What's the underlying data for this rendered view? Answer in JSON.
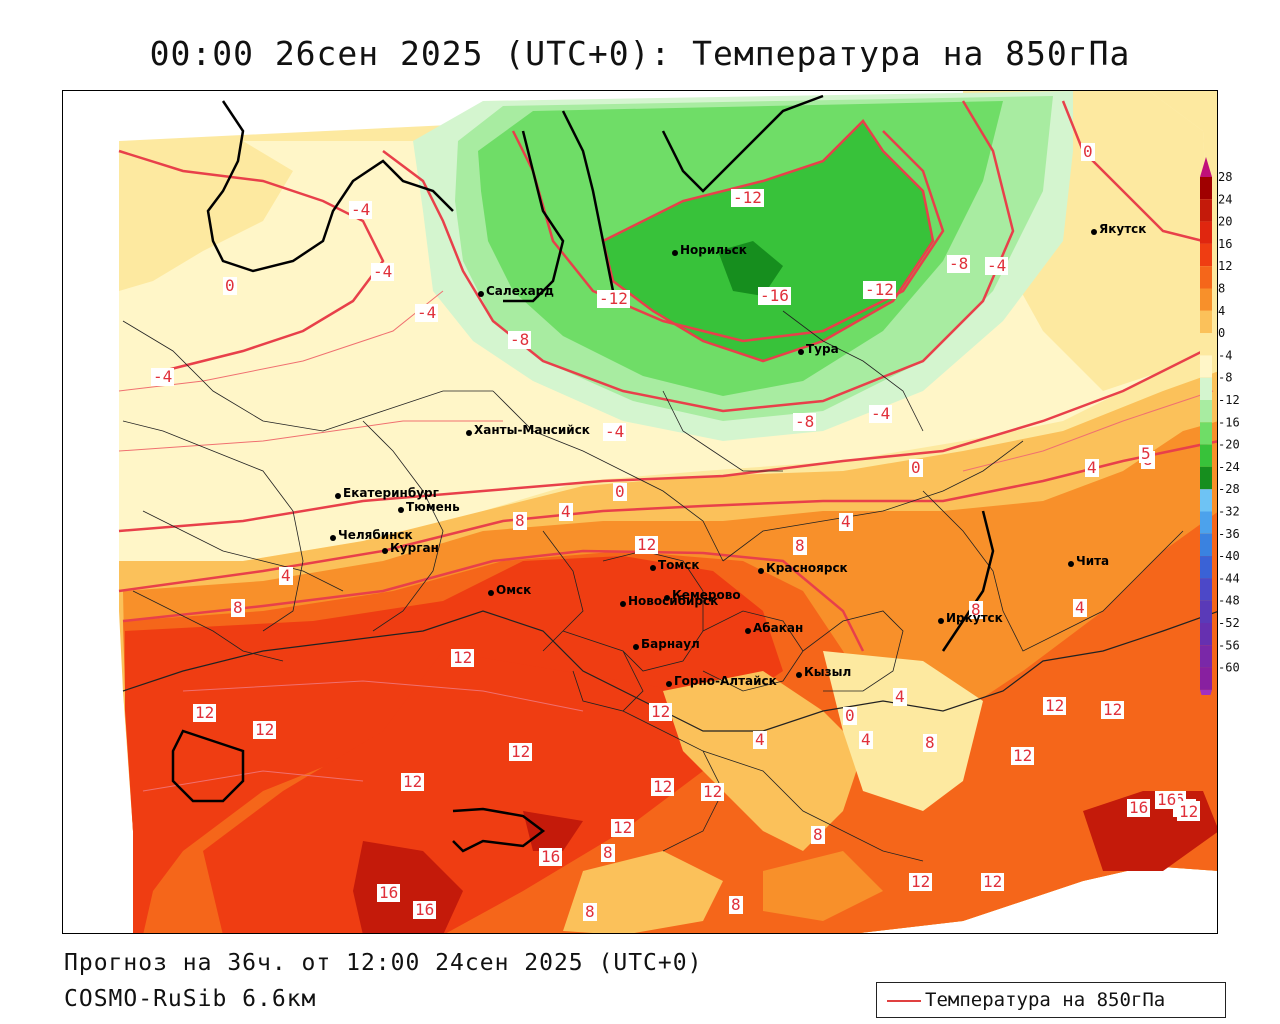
{
  "title": "00:00 26сен 2025 (UTC+0): Температура на 850гПа",
  "forecast_text": "Прогноз на 36ч. от 12:00 24сен 2025 (UTC+0)",
  "model_text": "COSMO-RuSib 6.6км",
  "legend_label": "Температура на 850гПа",
  "colorbar": {
    "ticks": [
      "28",
      "24",
      "20",
      "16",
      "12",
      "8",
      "4",
      "0",
      "-4",
      "-8",
      "-12",
      "-16",
      "-20",
      "-24",
      "-28",
      "-32",
      "-36",
      "-40",
      "-44",
      "-48",
      "-52",
      "-56",
      "-60"
    ],
    "colors": [
      "#a00000",
      "#c41a0a",
      "#e0260f",
      "#ef3d12",
      "#f5661a",
      "#f8902a",
      "#fbc15a",
      "#fde9a0",
      "#fff6c8",
      "#d4f5cf",
      "#a8eca1",
      "#6fdd67",
      "#38c23a",
      "#168e1e",
      "#6ec3f4",
      "#4ca2ec",
      "#3a82e0",
      "#3a62d6",
      "#4c48c8",
      "#5a3ab8",
      "#6630b0",
      "#7a28a8",
      "#8820a0"
    ],
    "top_arrow_color": "#c0107a",
    "bottom_arrow_color": "#a030c0"
  },
  "cities": [
    {
      "name": "Норильск"
    },
    {
      "name": "Салехард"
    },
    {
      "name": "Тура"
    },
    {
      "name": "Якутск"
    },
    {
      "name": "Ханты-Мансийск"
    },
    {
      "name": "Екатеринбург"
    },
    {
      "name": "Тюмень"
    },
    {
      "name": "Челябинск"
    },
    {
      "name": "Курган"
    },
    {
      "name": "Томск"
    },
    {
      "name": "Красноярск"
    },
    {
      "name": "Омск"
    },
    {
      "name": "Новосибирск"
    },
    {
      "name": "Кемерово"
    },
    {
      "name": "Абакан"
    },
    {
      "name": "Иркутск"
    },
    {
      "name": "Барнаул"
    },
    {
      "name": "Горно-Алтайск"
    },
    {
      "name": "Кызыл"
    },
    {
      "name": "Чита"
    }
  ],
  "contour_labels": [
    "-12",
    "-16",
    "-12",
    "-12",
    "-8",
    "-8",
    "-4",
    "-4",
    "-4",
    "-4",
    "-4",
    "-4",
    "-8",
    "-4",
    "0",
    "0",
    "0",
    "0",
    "4",
    "4",
    "4",
    "4",
    "8",
    "8",
    "8",
    "8",
    "12",
    "12",
    "12",
    "12",
    "12",
    "12",
    "12",
    "12",
    "12",
    "12",
    "12",
    "12",
    "12",
    "12",
    "12",
    "12",
    "16",
    "16",
    "16",
    "16",
    "16",
    "8",
    "8",
    "8",
    "8",
    "4",
    "4",
    "4",
    "0",
    "8",
    "8",
    "4",
    "5",
    "12",
    "16",
    "12"
  ],
  "colors": {
    "contour": "#e8404a",
    "accent_warm": "#ef3d12",
    "accent_cold": "#38c23a"
  }
}
